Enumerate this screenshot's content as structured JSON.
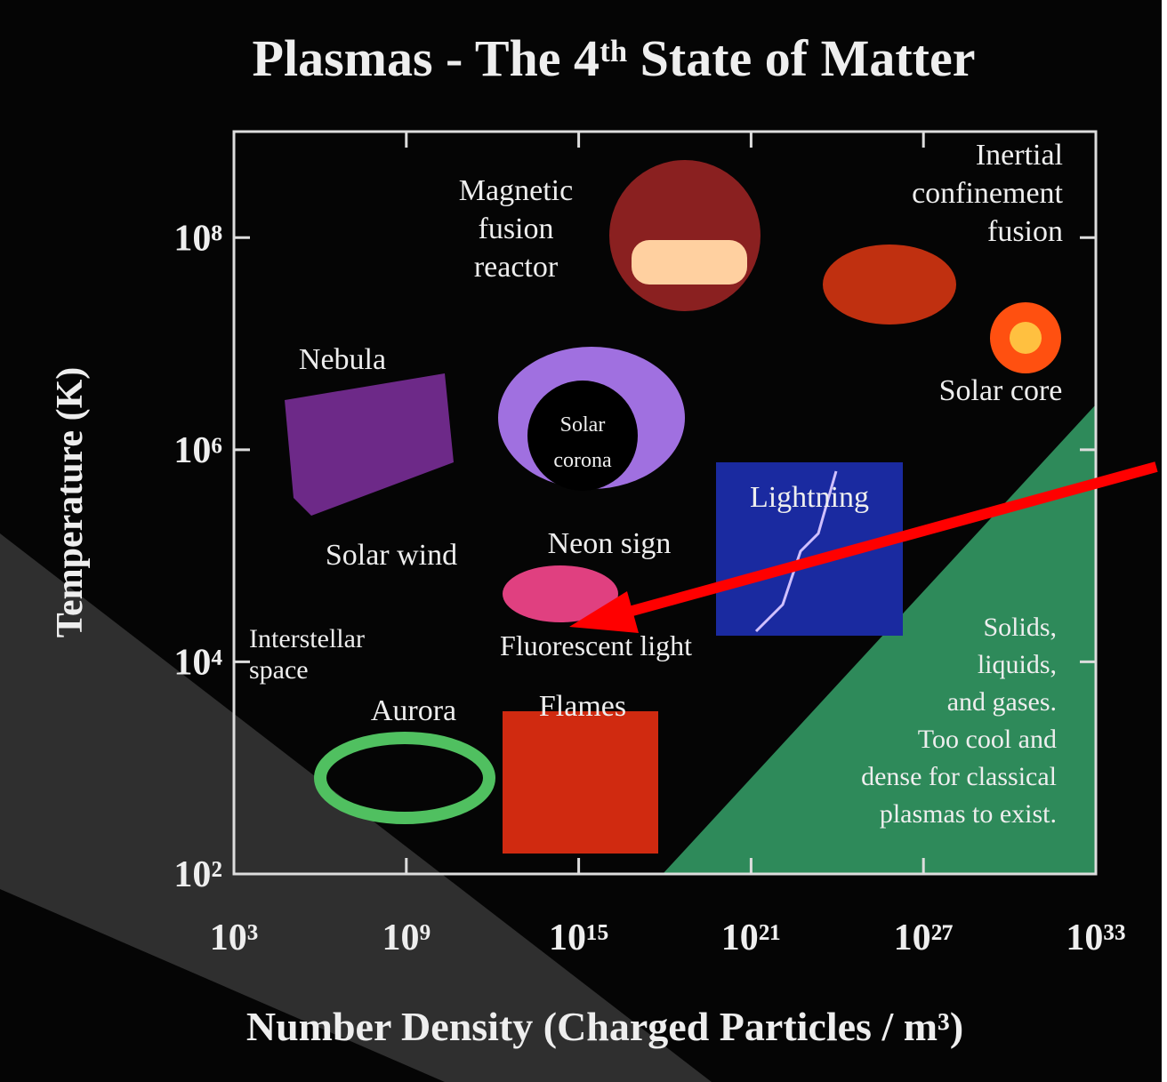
{
  "chart_data": {
    "type": "region-map",
    "title": "Plasmas - The 4ᵗʰ State of Matter",
    "x_label": "Number Density (Charged Particles / m³)",
    "y_label": "Temperature (K)",
    "x_log": true,
    "y_log": true,
    "xlim": [
      1000,
      1e+33
    ],
    "ylim": [
      100,
      1000000000.0
    ],
    "xticks": [
      {
        "value": 1000,
        "label": "10³"
      },
      {
        "value": 1000000000.0,
        "label": "10⁹"
      },
      {
        "value": 1000000000000000.0,
        "label": "10¹⁵"
      },
      {
        "value": 1e+21,
        "label": "10²¹"
      },
      {
        "value": 1e+27,
        "label": "10²⁷"
      },
      {
        "value": 1e+33,
        "label": "10³³"
      }
    ],
    "yticks": [
      {
        "value": 100,
        "label": "10²"
      },
      {
        "value": 10000,
        "label": "10⁴"
      },
      {
        "value": 1000000,
        "label": "10⁶"
      },
      {
        "value": 100000000,
        "label": "10⁸"
      }
    ],
    "annotations": [
      {
        "lines": [
          "Magnetic",
          "fusion",
          "reactor"
        ]
      },
      {
        "lines": [
          "Inertial",
          "confinement",
          "fusion"
        ]
      },
      {
        "lines": [
          "Solar core"
        ]
      },
      {
        "lines": [
          "Nebula"
        ]
      },
      {
        "lines": [
          "Solar",
          "corona"
        ]
      },
      {
        "lines": [
          "Lightning"
        ]
      },
      {
        "lines": [
          "Solar wind"
        ]
      },
      {
        "lines": [
          "Neon sign"
        ]
      },
      {
        "lines": [
          "Interstellar",
          "space"
        ]
      },
      {
        "lines": [
          "Fluorescent light"
        ]
      },
      {
        "lines": [
          "Aurora"
        ]
      },
      {
        "lines": [
          "Flames"
        ]
      },
      {
        "lines": [
          "Solids,",
          "liquids,",
          "and gases.",
          "Too cool and",
          "dense for classical",
          "plasmas to exist."
        ]
      }
    ]
  }
}
